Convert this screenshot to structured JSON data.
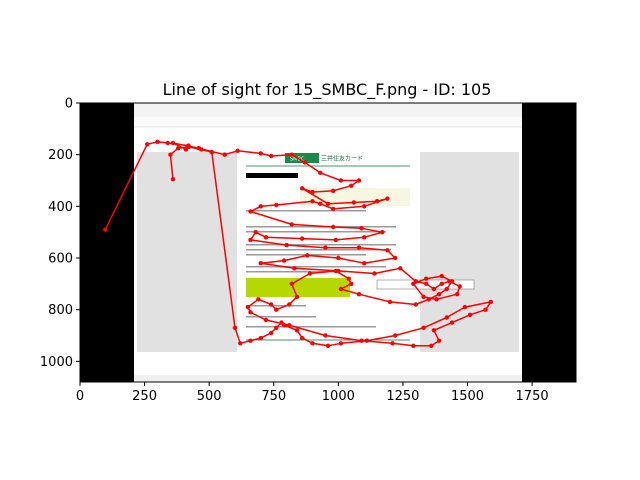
{
  "chart_data": {
    "type": "line",
    "title": "Line of sight for 15_SMBC_F.png - ID: 105",
    "xlabel": "",
    "ylabel": "",
    "xlim": [
      0,
      1920
    ],
    "ylim": [
      1080,
      0
    ],
    "y_axis_inverted": true,
    "grid": false,
    "xticks": [
      0,
      250,
      500,
      750,
      1000,
      1250,
      1500,
      1750
    ],
    "yticks": [
      0,
      200,
      400,
      600,
      800,
      1000
    ],
    "background_image": {
      "description_text": [
        "SMBC",
        "三井住友カード"
      ],
      "letterbox_color": "#000000"
    },
    "series": [
      {
        "color": "#ff0000",
        "marker": "circle",
        "x": [
          98,
          260,
          300,
          340,
          420,
          410,
          360,
          460,
          560,
          610,
          700,
          740,
          820,
          870,
          930,
          1010,
          1080,
          1050,
          980,
          900,
          860,
          960,
          1060,
          1150,
          1190,
          1100,
          980,
          930,
          900,
          760,
          700,
          660,
          820,
          980,
          1090,
          1170,
          1100,
          990,
          860,
          720,
          680,
          660,
          800,
          950,
          1080,
          1190,
          1220,
          1100,
          1000,
          880,
          790,
          700,
          830,
          1000,
          1140,
          1240,
          1300,
          1340,
          1370,
          1400,
          1430,
          1470,
          1460,
          1380,
          1330,
          1290,
          1340,
          1400,
          1440,
          1420,
          1390,
          1350,
          1300,
          1200,
          1080,
          1010,
          1050,
          1040,
          990,
          890,
          820,
          840,
          810,
          760,
          740,
          690,
          650,
          660,
          720,
          810,
          950,
          1090,
          1210,
          1290,
          1360,
          1390,
          1370,
          1440,
          1510,
          1570,
          1590,
          1490,
          1420,
          1330,
          1220,
          1110,
          1010,
          960,
          900,
          860,
          840,
          790,
          780,
          760,
          740,
          700,
          660,
          620,
          600,
          510,
          470,
          420,
          380,
          350,
          360
        ],
        "y": [
          490,
          160,
          150,
          155,
          165,
          180,
          155,
          175,
          200,
          185,
          195,
          205,
          200,
          230,
          270,
          300,
          300,
          320,
          340,
          345,
          330,
          390,
          385,
          380,
          370,
          400,
          410,
          390,
          380,
          395,
          400,
          420,
          470,
          480,
          485,
          500,
          520,
          530,
          525,
          520,
          500,
          530,
          550,
          560,
          560,
          570,
          600,
          620,
          600,
          590,
          610,
          620,
          640,
          650,
          660,
          640,
          690,
          700,
          720,
          700,
          690,
          710,
          740,
          760,
          750,
          700,
          680,
          670,
          690,
          720,
          740,
          760,
          780,
          770,
          740,
          720,
          700,
          680,
          650,
          660,
          700,
          750,
          780,
          800,
          780,
          760,
          790,
          810,
          840,
          860,
          900,
          920,
          930,
          940,
          940,
          920,
          880,
          850,
          820,
          800,
          770,
          790,
          830,
          870,
          900,
          920,
          930,
          940,
          930,
          910,
          880,
          860,
          850,
          870,
          890,
          910,
          920,
          930,
          870,
          190,
          180,
          170,
          175,
          200,
          295
        ]
      }
    ]
  }
}
